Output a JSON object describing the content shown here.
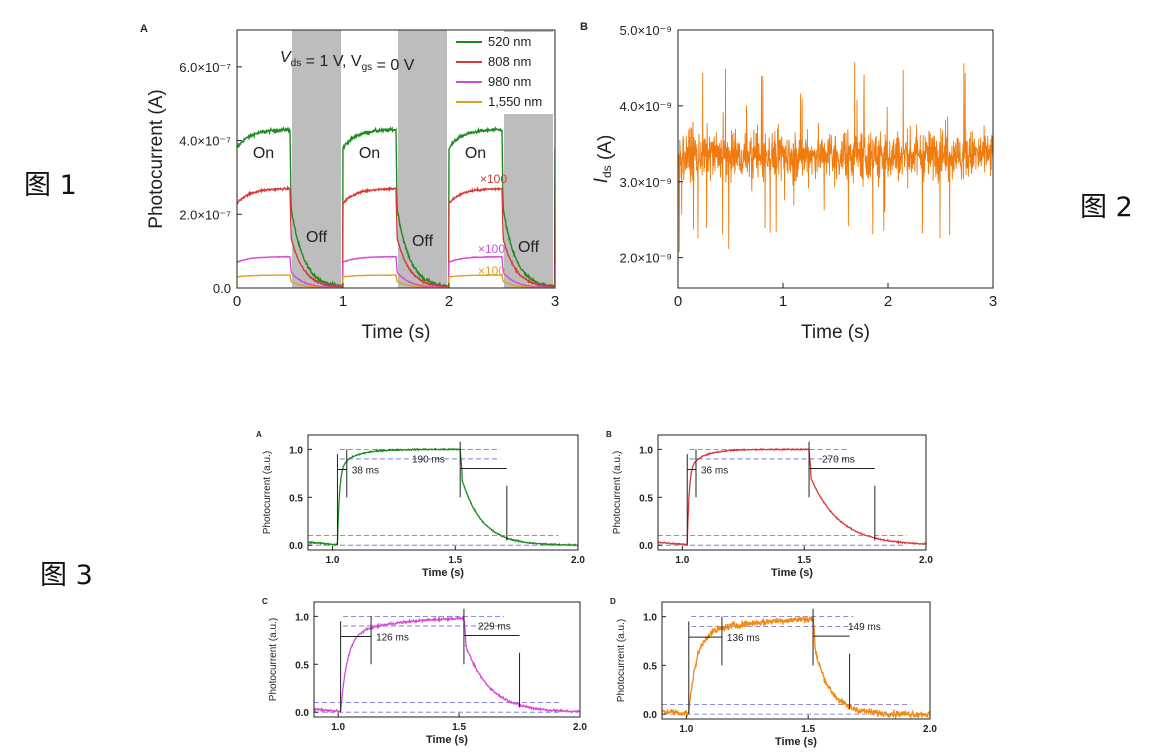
{
  "figure_labels": {
    "fig1": "图 1",
    "fig2": "图 2",
    "fig3": "图 3"
  },
  "chart_data": [
    {
      "id": "fig1A",
      "type": "line",
      "panel_label": "A",
      "xlabel": "Time (s)",
      "ylabel": "Photocurrent (A)",
      "xlim": [
        0,
        3
      ],
      "ylim": [
        0,
        7e-07
      ],
      "x_ticks": [
        0,
        1,
        2,
        3
      ],
      "x_tick_labels": [
        "0",
        "1",
        "2",
        "3"
      ],
      "y_ticks": [
        0,
        2e-07,
        4e-07,
        6e-07
      ],
      "y_tick_labels": [
        "0.0",
        "2.0×10⁻⁷",
        "4.0×10⁻⁷",
        "6.0×10⁻⁷"
      ],
      "condition_label": "V_ds = 1 V, V_gs = 0 V",
      "off_intervals": [
        [
          0.5,
          1.0
        ],
        [
          1.5,
          2.0
        ],
        [
          2.5,
          3.0
        ]
      ],
      "on_labels": [
        "On",
        "On",
        "On"
      ],
      "off_labels": [
        "Off",
        "Off",
        "Off"
      ],
      "legend_position": "top-right",
      "series": [
        {
          "name": "520 nm",
          "color": "#1e8a1e",
          "on_start": 3.8e-07,
          "on_plateau": 4.3e-07,
          "off_level": 0.0
        },
        {
          "name": "808 nm",
          "color": "#d63a3a",
          "on_start": 2.3e-07,
          "on_plateau": 2.7e-07,
          "off_level": 0.0,
          "multiplier": "×100"
        },
        {
          "name": "980 nm",
          "color": "#d64bd6",
          "on_start": 7e-08,
          "on_plateau": 8.5e-08,
          "off_level": 0.0,
          "multiplier": "×100"
        },
        {
          "name": "1,550 nm",
          "color": "#e0a020",
          "on_start": 3e-08,
          "on_plateau": 3.5e-08,
          "off_level": 0.0,
          "multiplier": "×100"
        }
      ]
    },
    {
      "id": "fig1B",
      "type": "line",
      "panel_label": "B",
      "xlabel": "Time (s)",
      "ylabel": "I_ds (A)",
      "xlim": [
        0,
        3
      ],
      "ylim": [
        1.6e-09,
        5e-09
      ],
      "x_ticks": [
        0,
        1,
        2,
        3
      ],
      "x_tick_labels": [
        "0",
        "1",
        "2",
        "3"
      ],
      "y_ticks": [
        2e-09,
        3e-09,
        4e-09,
        5e-09
      ],
      "y_tick_labels": [
        "2.0×10⁻⁹",
        "3.0×10⁻⁹",
        "4.0×10⁻⁹",
        "5.0×10⁻⁹"
      ],
      "series": [
        {
          "color": "#f07c10",
          "mean": 3.35e-09,
          "noise_range": [
            1.9e-09,
            4.7e-09
          ]
        }
      ]
    },
    {
      "id": "fig3A",
      "type": "line",
      "panel_label": "A",
      "xlabel": "Time (s)",
      "ylabel": "Photocurrent (a.u.)",
      "xlim": [
        0.9,
        2.0
      ],
      "ylim": [
        -0.05,
        1.15
      ],
      "x_ticks": [
        1.0,
        1.5,
        2.0
      ],
      "x_tick_labels": [
        "1.0",
        "1.5",
        "2.0"
      ],
      "y_ticks": [
        0,
        0.5,
        1.0
      ],
      "y_tick_labels": [
        "0.0",
        "0.5",
        "1.0"
      ],
      "color": "#1e8a1e",
      "on_time": 1.02,
      "off_time": 1.52,
      "rise_label": "38 ms",
      "fall_label": "190 ms",
      "rise_end": 1.058,
      "fall_end": 1.71,
      "noise": 0.012
    },
    {
      "id": "fig3B",
      "type": "line",
      "panel_label": "B",
      "xlabel": "Time (s)",
      "ylabel": "Photocurrent (a.u.)",
      "xlim": [
        0.9,
        2.0
      ],
      "ylim": [
        -0.05,
        1.15
      ],
      "x_ticks": [
        1.0,
        1.5,
        2.0
      ],
      "x_tick_labels": [
        "1.0",
        "1.5",
        "2.0"
      ],
      "y_ticks": [
        0,
        0.5,
        1.0
      ],
      "y_tick_labels": [
        "0.0",
        "0.5",
        "1.0"
      ],
      "color": "#d63a3a",
      "on_time": 1.02,
      "off_time": 1.52,
      "rise_label": "36 ms",
      "fall_label": "270 ms",
      "rise_end": 1.056,
      "fall_end": 1.79,
      "noise": 0.01
    },
    {
      "id": "fig3C",
      "type": "line",
      "panel_label": "C",
      "xlabel": "Time (s)",
      "ylabel": "Photocurrent (a.u.)",
      "xlim": [
        0.9,
        2.0
      ],
      "ylim": [
        -0.05,
        1.15
      ],
      "x_ticks": [
        1.0,
        1.5,
        2.0
      ],
      "x_tick_labels": [
        "1.0",
        "1.5",
        "2.0"
      ],
      "y_ticks": [
        0,
        0.5,
        1.0
      ],
      "y_tick_labels": [
        "0.0",
        "0.5",
        "1.0"
      ],
      "color": "#d64bd6",
      "on_time": 1.01,
      "off_time": 1.52,
      "rise_label": "126 ms",
      "fall_label": "229 ms",
      "rise_end": 1.136,
      "fall_end": 1.75,
      "noise": 0.02
    },
    {
      "id": "fig3D",
      "type": "line",
      "panel_label": "D",
      "xlabel": "Time (s)",
      "ylabel": "Photocurrent (a.u.)",
      "xlim": [
        0.9,
        2.0
      ],
      "ylim": [
        -0.05,
        1.15
      ],
      "x_ticks": [
        1.0,
        1.5,
        2.0
      ],
      "x_tick_labels": [
        "1.0",
        "1.5",
        "2.0"
      ],
      "y_ticks": [
        0,
        0.5,
        1.0
      ],
      "y_tick_labels": [
        "0.0",
        "0.5",
        "1.0"
      ],
      "color": "#f08a10",
      "on_time": 1.01,
      "off_time": 1.52,
      "rise_label": "136 ms",
      "fall_label": "149 ms",
      "rise_end": 1.146,
      "fall_end": 1.67,
      "noise": 0.06
    }
  ]
}
